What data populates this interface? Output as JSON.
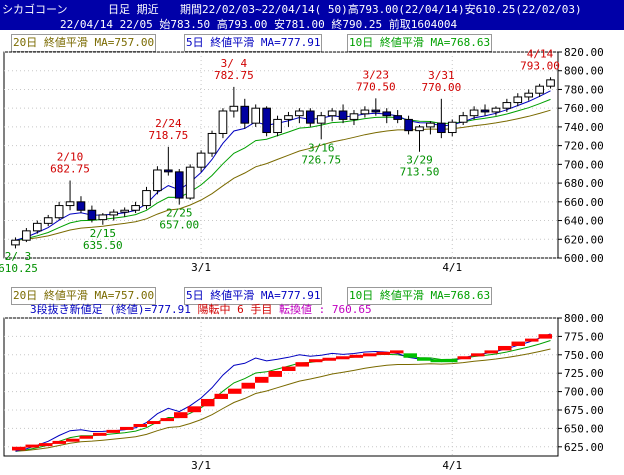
{
  "header": {
    "title_app": "シカゴコーン",
    "title_kind": "日足 期近",
    "title_range": "期間22/02/03~22/04/14( 50)高793.00(22/04/14)安610.25(22/02/03)",
    "info_line": "22/04/14 22/05 始783.50 高793.00 安781.00 終790.25 前取1604004"
  },
  "legend": {
    "ma20": "20日 終値平滑 MA=757.00",
    "ma5": "5日 終値平滑 MA=777.91",
    "ma10": "10日 終値平滑 MA=768.63"
  },
  "lower_info": {
    "kind": "3段抜き新値足 (終値)=777.91",
    "status": "陽転中",
    "count": "6 手目",
    "reversal": "転換値 : 760.65"
  },
  "colors": {
    "up_candle": "#ffffff",
    "down_candle": "#0000a0",
    "ma5": "#0000c0",
    "ma10": "#00a000",
    "ma20": "#7a6a00",
    "annot_high": "#d00000",
    "annot_low": "#009000",
    "newval_up": "#ff0000",
    "newval_down": "#00c000"
  },
  "chart_data": [
    {
      "type": "candlestick",
      "ylim": [
        600,
        820
      ],
      "yticks": [
        "820.00",
        "800.00",
        "780.00",
        "760.00",
        "740.00",
        "720.00",
        "700.00",
        "680.00",
        "660.00",
        "640.00",
        "620.00",
        "600.00"
      ],
      "xtick_labels": [
        "3/1",
        "4/1"
      ],
      "annotations": [
        {
          "date": "2/3",
          "text": "2/ 3",
          "value": "610.25",
          "kind": "low"
        },
        {
          "date": "2/10",
          "text": "2/10",
          "value": "682.75",
          "kind": "high"
        },
        {
          "date": "2/15",
          "text": "2/15",
          "value": "635.50",
          "kind": "low"
        },
        {
          "date": "2/24",
          "text": "2/24",
          "value": "718.75",
          "kind": "high"
        },
        {
          "date": "2/25",
          "text": "2/25",
          "value": "657.00",
          "kind": "low"
        },
        {
          "date": "3/4",
          "text": "3/ 4",
          "value": "782.75",
          "kind": "high"
        },
        {
          "date": "3/16",
          "text": "3/16",
          "value": "726.75",
          "kind": "low"
        },
        {
          "date": "3/23",
          "text": "3/23",
          "value": "770.50",
          "kind": "high"
        },
        {
          "date": "3/29",
          "text": "3/29",
          "value": "713.50",
          "kind": "low"
        },
        {
          "date": "3/31",
          "text": "3/31",
          "value": "770.00",
          "kind": "high"
        },
        {
          "date": "4/14",
          "text": "4/14",
          "value": "793.00",
          "kind": "high"
        }
      ],
      "candles": [
        {
          "d": "2/3",
          "o": 614,
          "h": 622,
          "l": 610.25,
          "c": 619
        },
        {
          "d": "2/4",
          "o": 619,
          "h": 632,
          "l": 617,
          "c": 629
        },
        {
          "d": "2/7",
          "o": 629,
          "h": 640,
          "l": 626,
          "c": 637
        },
        {
          "d": "2/8",
          "o": 637,
          "h": 646,
          "l": 634,
          "c": 643
        },
        {
          "d": "2/9",
          "o": 643,
          "h": 660,
          "l": 641,
          "c": 656
        },
        {
          "d": "2/10",
          "o": 656,
          "h": 682.75,
          "l": 651,
          "c": 660
        },
        {
          "d": "2/11",
          "o": 660,
          "h": 666,
          "l": 648,
          "c": 651
        },
        {
          "d": "2/14",
          "o": 651,
          "h": 656,
          "l": 638,
          "c": 641
        },
        {
          "d": "2/15",
          "o": 641,
          "h": 648,
          "l": 635.5,
          "c": 646
        },
        {
          "d": "2/16",
          "o": 646,
          "h": 652,
          "l": 640,
          "c": 649
        },
        {
          "d": "2/17",
          "o": 649,
          "h": 654,
          "l": 644,
          "c": 651
        },
        {
          "d": "2/18",
          "o": 651,
          "h": 660,
          "l": 648,
          "c": 656
        },
        {
          "d": "2/22",
          "o": 656,
          "h": 676,
          "l": 652,
          "c": 672
        },
        {
          "d": "2/23",
          "o": 672,
          "h": 698,
          "l": 668,
          "c": 694
        },
        {
          "d": "2/24",
          "o": 694,
          "h": 718.75,
          "l": 688,
          "c": 692
        },
        {
          "d": "2/25",
          "o": 692,
          "h": 695,
          "l": 657,
          "c": 664
        },
        {
          "d": "2/28",
          "o": 664,
          "h": 700,
          "l": 662,
          "c": 697
        },
        {
          "d": "3/1",
          "o": 697,
          "h": 715,
          "l": 692,
          "c": 712
        },
        {
          "d": "3/2",
          "o": 712,
          "h": 736,
          "l": 708,
          "c": 733
        },
        {
          "d": "3/3",
          "o": 733,
          "h": 760,
          "l": 728,
          "c": 757
        },
        {
          "d": "3/4",
          "o": 757,
          "h": 782.75,
          "l": 750,
          "c": 762
        },
        {
          "d": "3/7",
          "o": 762,
          "h": 770,
          "l": 738,
          "c": 744
        },
        {
          "d": "3/8",
          "o": 744,
          "h": 764,
          "l": 740,
          "c": 760
        },
        {
          "d": "3/9",
          "o": 760,
          "h": 762,
          "l": 730,
          "c": 734
        },
        {
          "d": "3/10",
          "o": 734,
          "h": 752,
          "l": 730,
          "c": 748
        },
        {
          "d": "3/11",
          "o": 748,
          "h": 756,
          "l": 740,
          "c": 752
        },
        {
          "d": "3/14",
          "o": 752,
          "h": 760,
          "l": 744,
          "c": 757
        },
        {
          "d": "3/15",
          "o": 757,
          "h": 760,
          "l": 740,
          "c": 744
        },
        {
          "d": "3/16",
          "o": 744,
          "h": 756,
          "l": 726.75,
          "c": 752
        },
        {
          "d": "3/17",
          "o": 752,
          "h": 760,
          "l": 746,
          "c": 757
        },
        {
          "d": "3/18",
          "o": 757,
          "h": 764,
          "l": 744,
          "c": 748
        },
        {
          "d": "3/21",
          "o": 748,
          "h": 758,
          "l": 742,
          "c": 754
        },
        {
          "d": "3/22",
          "o": 754,
          "h": 762,
          "l": 750,
          "c": 758
        },
        {
          "d": "3/23",
          "o": 758,
          "h": 770.5,
          "l": 752,
          "c": 756
        },
        {
          "d": "3/24",
          "o": 756,
          "h": 760,
          "l": 744,
          "c": 752
        },
        {
          "d": "3/25",
          "o": 752,
          "h": 758,
          "l": 744,
          "c": 748
        },
        {
          "d": "3/28",
          "o": 748,
          "h": 752,
          "l": 732,
          "c": 736
        },
        {
          "d": "3/29",
          "o": 736,
          "h": 742,
          "l": 713.5,
          "c": 740
        },
        {
          "d": "3/30",
          "o": 740,
          "h": 746,
          "l": 732,
          "c": 744
        },
        {
          "d": "3/31",
          "o": 744,
          "h": 770,
          "l": 728,
          "c": 734
        },
        {
          "d": "4/1",
          "o": 734,
          "h": 748,
          "l": 730,
          "c": 745
        },
        {
          "d": "4/4",
          "o": 745,
          "h": 756,
          "l": 742,
          "c": 752
        },
        {
          "d": "4/5",
          "o": 752,
          "h": 762,
          "l": 748,
          "c": 758
        },
        {
          "d": "4/6",
          "o": 758,
          "h": 764,
          "l": 752,
          "c": 756
        },
        {
          "d": "4/7",
          "o": 756,
          "h": 762,
          "l": 752,
          "c": 760
        },
        {
          "d": "4/8",
          "o": 760,
          "h": 770,
          "l": 756,
          "c": 766
        },
        {
          "d": "4/11",
          "o": 766,
          "h": 776,
          "l": 762,
          "c": 772
        },
        {
          "d": "4/12",
          "o": 772,
          "h": 780,
          "l": 768,
          "c": 776
        },
        {
          "d": "4/13",
          "o": 776,
          "h": 786,
          "l": 772,
          "c": 783.5
        },
        {
          "d": "4/14",
          "o": 783.5,
          "h": 793,
          "l": 781,
          "c": 790.25
        }
      ]
    },
    {
      "type": "new-value-bars",
      "ylim": [
        612.5,
        800
      ],
      "yticks": [
        "800.00",
        "775.00",
        "750.00",
        "725.00",
        "700.00",
        "675.00",
        "650.00",
        "625.00"
      ],
      "xtick_labels": [
        "3/1",
        "4/1"
      ],
      "bars": [
        {
          "lo": 620,
          "hi": 625,
          "dir": "up"
        },
        {
          "lo": 625,
          "hi": 628,
          "dir": "up"
        },
        {
          "lo": 628,
          "hi": 630,
          "dir": "up"
        },
        {
          "lo": 630,
          "hi": 633,
          "dir": "up"
        },
        {
          "lo": 633,
          "hi": 636,
          "dir": "up"
        },
        {
          "lo": 636,
          "hi": 640,
          "dir": "up"
        },
        {
          "lo": 640,
          "hi": 644,
          "dir": "up"
        },
        {
          "lo": 644,
          "hi": 648,
          "dir": "up"
        },
        {
          "lo": 648,
          "hi": 652,
          "dir": "up"
        },
        {
          "lo": 652,
          "hi": 656,
          "dir": "up"
        },
        {
          "lo": 656,
          "hi": 660,
          "dir": "up"
        },
        {
          "lo": 660,
          "hi": 664,
          "dir": "up"
        },
        {
          "lo": 664,
          "hi": 672,
          "dir": "up"
        },
        {
          "lo": 672,
          "hi": 680,
          "dir": "up"
        },
        {
          "lo": 680,
          "hi": 690,
          "dir": "up"
        },
        {
          "lo": 690,
          "hi": 697,
          "dir": "up"
        },
        {
          "lo": 697,
          "hi": 704,
          "dir": "up"
        },
        {
          "lo": 704,
          "hi": 712,
          "dir": "up"
        },
        {
          "lo": 712,
          "hi": 720,
          "dir": "up"
        },
        {
          "lo": 720,
          "hi": 728,
          "dir": "up"
        },
        {
          "lo": 728,
          "hi": 734,
          "dir": "up"
        },
        {
          "lo": 734,
          "hi": 740,
          "dir": "up"
        },
        {
          "lo": 740,
          "hi": 744,
          "dir": "up"
        },
        {
          "lo": 744,
          "hi": 746,
          "dir": "up"
        },
        {
          "lo": 746,
          "hi": 748,
          "dir": "up"
        },
        {
          "lo": 748,
          "hi": 750,
          "dir": "up"
        },
        {
          "lo": 750,
          "hi": 752,
          "dir": "up"
        },
        {
          "lo": 752,
          "hi": 754,
          "dir": "up"
        },
        {
          "lo": 754,
          "hi": 756,
          "dir": "up"
        },
        {
          "lo": 746,
          "hi": 752,
          "dir": "down"
        },
        {
          "lo": 744,
          "hi": 746,
          "dir": "down"
        },
        {
          "lo": 740,
          "hi": 744,
          "dir": "down"
        },
        {
          "lo": 740,
          "hi": 744,
          "dir": "down"
        },
        {
          "lo": 744,
          "hi": 748,
          "dir": "up"
        },
        {
          "lo": 748,
          "hi": 752,
          "dir": "up"
        },
        {
          "lo": 752,
          "hi": 756,
          "dir": "up"
        },
        {
          "lo": 756,
          "hi": 762,
          "dir": "up"
        },
        {
          "lo": 762,
          "hi": 768,
          "dir": "up"
        },
        {
          "lo": 768,
          "hi": 772,
          "dir": "up"
        },
        {
          "lo": 772,
          "hi": 778,
          "dir": "up"
        }
      ]
    }
  ]
}
